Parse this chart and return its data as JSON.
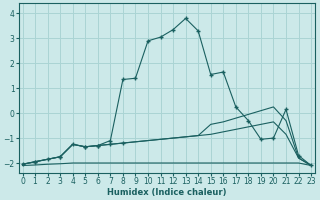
{
  "xlabel": "Humidex (Indice chaleur)",
  "xlim": [
    -0.3,
    23.3
  ],
  "ylim": [
    -2.4,
    4.4
  ],
  "xticks": [
    0,
    1,
    2,
    3,
    4,
    5,
    6,
    7,
    8,
    9,
    10,
    11,
    12,
    13,
    14,
    15,
    16,
    17,
    18,
    19,
    20,
    21,
    22,
    23
  ],
  "yticks": [
    -2,
    -1,
    0,
    1,
    2,
    3,
    4
  ],
  "bg": "#cce9e9",
  "grid_color": "#aad4d4",
  "lc": "#1a6060",
  "curve_hump_x": [
    0,
    1,
    2,
    3,
    4,
    5,
    6,
    7,
    8,
    9,
    10,
    11,
    12,
    13,
    14,
    15,
    16,
    17,
    18,
    19,
    20,
    21,
    22,
    23
  ],
  "curve_hump_y": [
    -2.05,
    -1.95,
    -1.85,
    -1.75,
    -1.25,
    -1.35,
    -1.3,
    -1.1,
    1.35,
    1.4,
    2.9,
    3.05,
    3.35,
    3.8,
    3.3,
    1.55,
    1.65,
    0.25,
    -0.3,
    -1.05,
    -1.0,
    0.15,
    -1.7,
    -2.1
  ],
  "curve_mid_x": [
    0,
    1,
    2,
    3,
    4,
    5,
    6,
    7,
    8,
    9,
    10,
    11,
    12,
    13,
    14,
    15,
    16,
    17,
    18,
    19,
    20,
    21,
    22,
    23
  ],
  "curve_mid_y": [
    -2.05,
    -1.95,
    -1.85,
    -1.75,
    -1.25,
    -1.35,
    -1.3,
    -1.25,
    -1.2,
    -1.15,
    -1.1,
    -1.05,
    -1.0,
    -0.95,
    -0.9,
    -0.85,
    -0.75,
    -0.65,
    -0.55,
    -0.45,
    -0.35,
    -0.85,
    -1.8,
    -2.1
  ],
  "curve_upper_x": [
    0,
    1,
    2,
    3,
    4,
    5,
    6,
    7,
    8,
    9,
    10,
    11,
    12,
    13,
    14,
    15,
    16,
    17,
    18,
    19,
    20,
    21,
    22,
    23
  ],
  "curve_upper_y": [
    -2.05,
    -1.95,
    -1.85,
    -1.75,
    -1.25,
    -1.35,
    -1.3,
    -1.25,
    -1.2,
    -1.15,
    -1.1,
    -1.05,
    -1.0,
    -0.95,
    -0.9,
    -0.45,
    -0.35,
    -0.2,
    -0.05,
    0.1,
    0.25,
    -0.3,
    -1.8,
    -2.1
  ],
  "curve_flat_x": [
    0,
    1,
    2,
    3,
    4,
    5,
    6,
    7,
    8,
    9,
    10,
    11,
    12,
    13,
    14,
    15,
    16,
    17,
    18,
    19,
    20,
    21,
    22,
    23
  ],
  "curve_flat_y": [
    -2.1,
    -2.08,
    -2.05,
    -2.03,
    -2.0,
    -2.0,
    -2.0,
    -2.0,
    -2.0,
    -2.0,
    -2.0,
    -2.0,
    -2.0,
    -2.0,
    -2.0,
    -2.0,
    -2.0,
    -2.0,
    -2.0,
    -2.0,
    -2.0,
    -2.0,
    -2.0,
    -2.1
  ]
}
